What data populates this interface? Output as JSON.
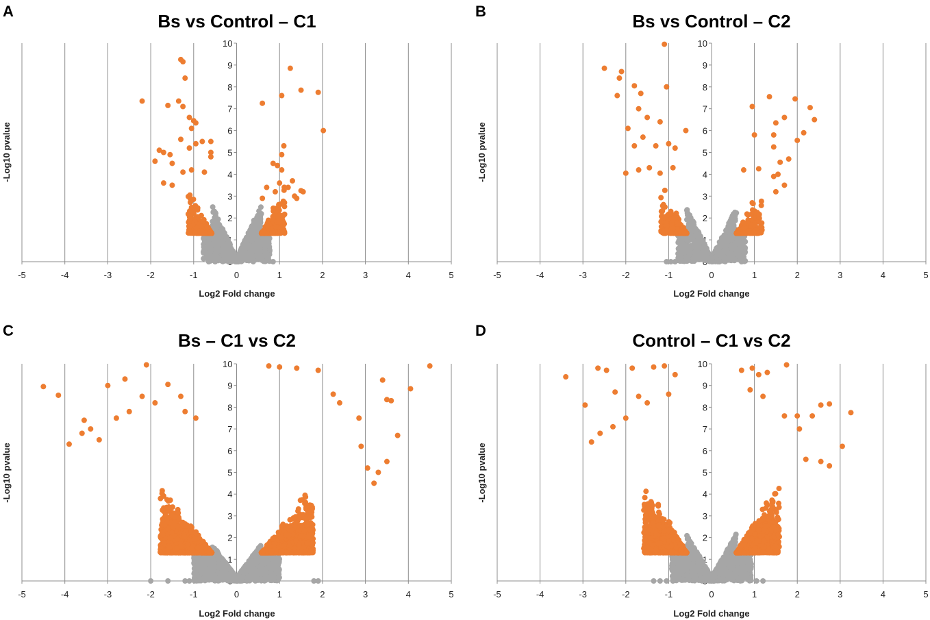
{
  "colors": {
    "significant": "#ED7D31",
    "nonsignificant": "#A6A6A6",
    "grid": "#8C8C8C"
  },
  "chart_data": [
    {
      "panel": "A",
      "type": "scatter",
      "title": "Bs vs Control – C1",
      "xlabel": "Log2 Fold change",
      "ylabel": "-Log10 pvalue",
      "xlim": [
        -5,
        5
      ],
      "ylim": [
        0,
        10
      ],
      "xticks": [
        "-5",
        "-4",
        "-3",
        "-2",
        "-1",
        "0",
        "1",
        "2",
        "3",
        "4",
        "5"
      ],
      "yticks": [
        "0",
        "1",
        "2",
        "3",
        "4",
        "5",
        "6",
        "7",
        "8",
        "9",
        "10"
      ],
      "seed": 11,
      "sig_threshold": {
        "fc": 0.58,
        "p": 1.3
      },
      "cloud": {
        "n_sig": 520,
        "n_nonsig": 900,
        "spread": 0.55,
        "slope": 3.2
      },
      "series": [
        {
          "name": "significant",
          "points": [
            [
              -2.2,
              7.35
            ],
            [
              -1.3,
              9.25
            ],
            [
              -1.25,
              9.15
            ],
            [
              -1.2,
              8.4
            ],
            [
              -1.6,
              7.15
            ],
            [
              -1.35,
              7.35
            ],
            [
              -1.25,
              7.1
            ],
            [
              -1.1,
              6.6
            ],
            [
              -1.0,
              6.45
            ],
            [
              -0.95,
              6.35
            ],
            [
              -1.05,
              6.1
            ],
            [
              -0.6,
              5.5
            ],
            [
              -0.6,
              5.0
            ],
            [
              -0.6,
              4.8
            ],
            [
              -1.9,
              4.6
            ],
            [
              -1.8,
              5.1
            ],
            [
              -1.7,
              5.0
            ],
            [
              -1.55,
              4.9
            ],
            [
              -1.5,
              4.5
            ],
            [
              -1.3,
              5.6
            ],
            [
              -1.1,
              5.2
            ],
            [
              -0.95,
              5.4
            ],
            [
              -0.8,
              5.5
            ],
            [
              -1.25,
              4.1
            ],
            [
              -1.05,
              4.2
            ],
            [
              -1.7,
              3.6
            ],
            [
              -1.5,
              3.5
            ],
            [
              -0.75,
              4.1
            ],
            [
              0.6,
              7.25
            ],
            [
              1.05,
              7.6
            ],
            [
              1.25,
              8.85
            ],
            [
              1.5,
              7.85
            ],
            [
              1.9,
              7.75
            ],
            [
              2.02,
              6.0
            ],
            [
              1.1,
              5.3
            ],
            [
              1.05,
              4.9
            ],
            [
              0.95,
              4.4
            ],
            [
              0.85,
              4.5
            ],
            [
              1.05,
              4.2
            ],
            [
              1.3,
              3.7
            ],
            [
              1.5,
              3.25
            ],
            [
              1.4,
              2.9
            ],
            [
              1.2,
              3.4
            ],
            [
              1.0,
              3.6
            ],
            [
              0.7,
              3.4
            ],
            [
              0.9,
              3.2
            ],
            [
              0.6,
              2.9
            ],
            [
              1.55,
              3.2
            ],
            [
              1.35,
              3.0
            ]
          ]
        },
        {
          "name": "nonsignificant",
          "points": [
            [
              -0.65,
              0.0
            ],
            [
              -0.5,
              0.0
            ],
            [
              0.85,
              0.0
            ]
          ]
        }
      ]
    },
    {
      "panel": "B",
      "type": "scatter",
      "title": "Bs vs Control – C2",
      "xlabel": "Log2 Fold change",
      "ylabel": "-Log10 pvalue",
      "xlim": [
        -5,
        5
      ],
      "ylim": [
        0,
        10
      ],
      "xticks": [
        "-5",
        "-4",
        "-3",
        "-2",
        "-1",
        "0",
        "1",
        "2",
        "3",
        "4",
        "5"
      ],
      "yticks": [
        "0",
        "1",
        "2",
        "3",
        "4",
        "5",
        "6",
        "7",
        "8",
        "9",
        "10"
      ],
      "seed": 23,
      "sig_threshold": {
        "fc": 0.58,
        "p": 1.3
      },
      "cloud": {
        "n_sig": 560,
        "n_nonsig": 950,
        "spread": 0.6,
        "slope": 3.0
      },
      "series": [
        {
          "name": "significant",
          "points": [
            [
              -1.1,
              9.95
            ],
            [
              -2.5,
              8.85
            ],
            [
              -2.1,
              8.7
            ],
            [
              -2.15,
              8.4
            ],
            [
              -1.8,
              8.05
            ],
            [
              -1.65,
              7.7
            ],
            [
              -1.05,
              8.0
            ],
            [
              -2.2,
              7.6
            ],
            [
              -1.7,
              7.0
            ],
            [
              -1.5,
              6.6
            ],
            [
              -1.2,
              6.4
            ],
            [
              -0.6,
              6.0
            ],
            [
              -1.95,
              6.1
            ],
            [
              -1.6,
              5.7
            ],
            [
              -1.8,
              5.3
            ],
            [
              -1.3,
              5.3
            ],
            [
              -1.0,
              5.4
            ],
            [
              -0.85,
              5.2
            ],
            [
              -2.0,
              4.05
            ],
            [
              -1.7,
              4.2
            ],
            [
              -1.45,
              4.3
            ],
            [
              -1.2,
              4.05
            ],
            [
              -0.9,
              4.3
            ],
            [
              0.95,
              7.1
            ],
            [
              1.35,
              7.55
            ],
            [
              1.95,
              7.45
            ],
            [
              2.3,
              7.05
            ],
            [
              2.4,
              6.5
            ],
            [
              1.7,
              6.6
            ],
            [
              1.5,
              6.35
            ],
            [
              1.45,
              5.8
            ],
            [
              2.15,
              5.9
            ],
            [
              2.0,
              5.55
            ],
            [
              1.0,
              5.8
            ],
            [
              1.45,
              5.25
            ],
            [
              1.8,
              4.7
            ],
            [
              1.6,
              4.55
            ],
            [
              0.75,
              4.2
            ],
            [
              1.1,
              4.25
            ],
            [
              1.45,
              3.9
            ],
            [
              1.55,
              4.0
            ],
            [
              1.7,
              3.5
            ],
            [
              1.5,
              3.2
            ]
          ]
        },
        {
          "name": "nonsignificant",
          "points": [
            [
              -1.05,
              0.0
            ],
            [
              -0.95,
              0.0
            ],
            [
              -0.85,
              0.0
            ],
            [
              0.7,
              0.0
            ]
          ]
        }
      ]
    },
    {
      "panel": "C",
      "type": "scatter",
      "title": "Bs – C1 vs C2",
      "xlabel": "Log2 Fold change",
      "ylabel": "-Log10 pvalue",
      "xlim": [
        -5,
        5
      ],
      "ylim": [
        0,
        10
      ],
      "xticks": [
        "-5",
        "-4",
        "-3",
        "-2",
        "-1",
        "0",
        "1",
        "2",
        "3",
        "4",
        "5"
      ],
      "yticks": [
        "0",
        "1",
        "2",
        "3",
        "4",
        "5",
        "6",
        "7",
        "8",
        "9",
        "10"
      ],
      "seed": 37,
      "sig_threshold": {
        "fc": 0.58,
        "p": 1.3
      },
      "cloud": {
        "n_sig": 3200,
        "n_nonsig": 1700,
        "spread": 1.2,
        "slope": 2.0
      },
      "series": [
        {
          "name": "significant",
          "points": [
            [
              -4.5,
              8.95
            ],
            [
              -4.15,
              8.55
            ],
            [
              -3.55,
              7.4
            ],
            [
              -3.0,
              9.0
            ],
            [
              -2.6,
              9.3
            ],
            [
              -2.1,
              9.95
            ],
            [
              -1.6,
              9.05
            ],
            [
              -3.9,
              6.3
            ],
            [
              -3.6,
              6.8
            ],
            [
              -3.4,
              7.0
            ],
            [
              -3.2,
              6.5
            ],
            [
              -2.8,
              7.5
            ],
            [
              -2.5,
              7.8
            ],
            [
              -2.2,
              8.5
            ],
            [
              -1.9,
              8.2
            ],
            [
              -1.3,
              8.5
            ],
            [
              -1.2,
              7.8
            ],
            [
              -0.95,
              7.5
            ],
            [
              0.75,
              9.9
            ],
            [
              1.0,
              9.85
            ],
            [
              1.4,
              9.8
            ],
            [
              1.9,
              9.7
            ],
            [
              2.25,
              8.6
            ],
            [
              2.4,
              8.2
            ],
            [
              2.85,
              7.5
            ],
            [
              3.4,
              9.25
            ],
            [
              3.5,
              8.35
            ],
            [
              3.6,
              8.3
            ],
            [
              4.05,
              8.85
            ],
            [
              4.5,
              9.9
            ],
            [
              3.75,
              6.7
            ],
            [
              3.5,
              5.5
            ],
            [
              3.3,
              5.0
            ],
            [
              3.05,
              5.2
            ],
            [
              3.2,
              4.5
            ],
            [
              2.9,
              6.2
            ]
          ]
        },
        {
          "name": "nonsignificant",
          "points": [
            [
              -2.0,
              0.0
            ],
            [
              -1.6,
              0.0
            ],
            [
              -1.2,
              0.0
            ],
            [
              -1.1,
              0.0
            ],
            [
              1.8,
              0.0
            ],
            [
              1.9,
              0.0
            ]
          ]
        }
      ]
    },
    {
      "panel": "D",
      "type": "scatter",
      "title": "Control – C1 vs C2",
      "xlabel": "Log2 Fold change",
      "ylabel": "-Log10 pvalue",
      "xlim": [
        -5,
        5
      ],
      "ylim": [
        0,
        10
      ],
      "xticks": [
        "-5",
        "-4",
        "-3",
        "-2",
        "-1",
        "0",
        "1",
        "2",
        "3",
        "4",
        "5"
      ],
      "yticks": [
        "0",
        "1",
        "2",
        "3",
        "4",
        "5",
        "6",
        "7",
        "8",
        "9",
        "10"
      ],
      "seed": 53,
      "sig_threshold": {
        "fc": 0.58,
        "p": 1.3
      },
      "cloud": {
        "n_sig": 2500,
        "n_nonsig": 1600,
        "spread": 1.0,
        "slope": 2.6
      },
      "series": [
        {
          "name": "significant",
          "points": [
            [
              -3.4,
              9.4
            ],
            [
              -2.95,
              8.1
            ],
            [
              -2.65,
              9.8
            ],
            [
              -2.45,
              9.7
            ],
            [
              -2.25,
              8.7
            ],
            [
              -1.85,
              9.8
            ],
            [
              -1.35,
              9.85
            ],
            [
              -1.1,
              9.9
            ],
            [
              -0.85,
              9.5
            ],
            [
              -2.8,
              6.4
            ],
            [
              -2.6,
              6.8
            ],
            [
              -2.3,
              7.1
            ],
            [
              -2.0,
              7.5
            ],
            [
              -1.7,
              8.5
            ],
            [
              -1.5,
              8.2
            ],
            [
              -1.0,
              8.6
            ],
            [
              0.7,
              9.7
            ],
            [
              0.95,
              9.8
            ],
            [
              1.1,
              9.5
            ],
            [
              1.3,
              9.6
            ],
            [
              1.75,
              9.95
            ],
            [
              0.9,
              8.8
            ],
            [
              1.2,
              8.5
            ],
            [
              1.7,
              7.6
            ],
            [
              2.0,
              7.6
            ],
            [
              2.35,
              7.6
            ],
            [
              2.55,
              8.1
            ],
            [
              2.75,
              8.15
            ],
            [
              3.25,
              7.75
            ],
            [
              3.05,
              6.2
            ],
            [
              2.55,
              5.5
            ],
            [
              2.75,
              5.3
            ],
            [
              2.2,
              5.6
            ],
            [
              2.05,
              7.0
            ]
          ]
        },
        {
          "name": "nonsignificant",
          "points": [
            [
              -1.35,
              0.0
            ],
            [
              -1.2,
              0.0
            ],
            [
              -1.05,
              0.0
            ],
            [
              -0.9,
              0.0
            ],
            [
              1.05,
              0.0
            ],
            [
              1.2,
              0.0
            ]
          ]
        }
      ]
    }
  ]
}
